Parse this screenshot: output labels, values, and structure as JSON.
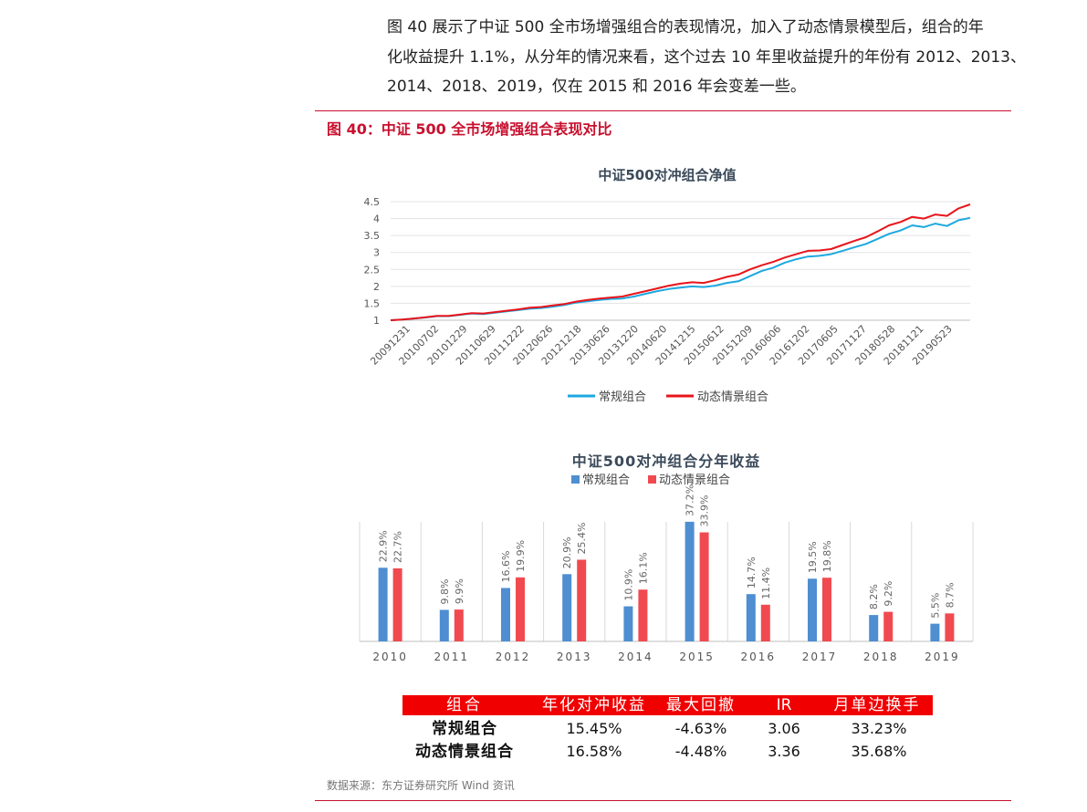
{
  "paragraph": {
    "line1": "图 40 展示了中证 500 全市场增强组合的表现情况，加入了动态情景模型后，组合的年",
    "line2": "化收益提升 1.1%，从分年的情况来看，这个过去 10 年里收益提升的年份有 2012、2013、",
    "line3": "2014、2018、2019，仅在 2015 和 2016 年会变差一些。"
  },
  "figure_title": "图 40：中证 500 全市场增强组合表现对比",
  "colors": {
    "regular": "#1ea8e0",
    "dynamic": "#e8141b",
    "bar_regular": "#4e8ed1",
    "bar_dynamic": "#f04a50",
    "accent": "#c8102e",
    "table_header": "#f00000"
  },
  "chart_data": [
    {
      "type": "line",
      "title": "中证500对冲组合净值",
      "ylim": [
        1,
        4.5
      ],
      "yticks": [
        "1",
        "1.5",
        "2",
        "2.5",
        "3",
        "3.5",
        "4",
        "4.5"
      ],
      "xtick_labels": [
        "20091231",
        "20100702",
        "20101229",
        "20110629",
        "20111222",
        "20120626",
        "20121218",
        "20130626",
        "20131220",
        "20140620",
        "20141215",
        "20150612",
        "20151209",
        "20160606",
        "20161202",
        "20170605",
        "20171127",
        "20180528",
        "20181121",
        "20190523"
      ],
      "grid": true,
      "legend_placement": "bottom",
      "series": [
        {
          "name": "常规组合",
          "color": "#1ea8e0",
          "values": [
            1.0,
            1.02,
            1.05,
            1.08,
            1.12,
            1.12,
            1.16,
            1.2,
            1.18,
            1.22,
            1.26,
            1.3,
            1.34,
            1.36,
            1.4,
            1.45,
            1.52,
            1.56,
            1.6,
            1.63,
            1.64,
            1.7,
            1.78,
            1.86,
            1.92,
            1.96,
            2.0,
            1.98,
            2.02,
            2.1,
            2.15,
            2.3,
            2.45,
            2.55,
            2.7,
            2.8,
            2.88,
            2.9,
            2.95,
            3.05,
            3.15,
            3.25,
            3.4,
            3.55,
            3.65,
            3.8,
            3.75,
            3.85,
            3.78,
            3.95,
            4.02
          ]
        },
        {
          "name": "动态情景组合",
          "color": "#e8141b",
          "values": [
            1.0,
            1.02,
            1.05,
            1.09,
            1.13,
            1.13,
            1.17,
            1.21,
            1.2,
            1.24,
            1.28,
            1.32,
            1.37,
            1.39,
            1.44,
            1.48,
            1.55,
            1.6,
            1.64,
            1.67,
            1.7,
            1.78,
            1.86,
            1.94,
            2.02,
            2.08,
            2.12,
            2.1,
            2.18,
            2.28,
            2.35,
            2.5,
            2.62,
            2.72,
            2.85,
            2.95,
            3.05,
            3.06,
            3.1,
            3.22,
            3.34,
            3.45,
            3.62,
            3.8,
            3.9,
            4.05,
            4.0,
            4.12,
            4.08,
            4.3,
            4.42
          ]
        }
      ]
    },
    {
      "type": "bar",
      "title": "中证500对冲组合分年收益",
      "legend_placement": "top",
      "categories": [
        "2010",
        "2011",
        "2012",
        "2013",
        "2014",
        "2015",
        "2016",
        "2017",
        "2018",
        "2019"
      ],
      "series": [
        {
          "name": "常规组合",
          "color": "#4e8ed1",
          "values": [
            22.9,
            9.8,
            16.6,
            20.9,
            10.9,
            37.2,
            14.7,
            19.5,
            8.2,
            5.5
          ],
          "labels": [
            "22.9%",
            "9.8%",
            "16.6%",
            "20.9%",
            "10.9%",
            "37.2%",
            "14.7%",
            "19.5%",
            "8.2%",
            "5.5%"
          ]
        },
        {
          "name": "动态情景组合",
          "color": "#f04a50",
          "values": [
            22.7,
            9.9,
            19.9,
            25.4,
            16.1,
            33.9,
            11.4,
            19.8,
            9.2,
            8.7
          ],
          "labels": [
            "22.7%",
            "9.9%",
            "19.9%",
            "25.4%",
            "16.1%",
            "33.9%",
            "11.4%",
            "19.8%",
            "9.2%",
            "8.7%"
          ]
        }
      ]
    },
    {
      "type": "table",
      "columns": [
        "组合",
        "年化对冲收益",
        "最大回撤",
        "IR",
        "月单边换手"
      ],
      "rows": [
        [
          "常规组合",
          "15.45%",
          "-4.63%",
          "3.06",
          "33.23%"
        ],
        [
          "动态情景组合",
          "16.58%",
          "-4.48%",
          "3.36",
          "35.68%"
        ]
      ]
    }
  ],
  "source": "数据来源：东方证券研究所 Wind 资讯"
}
